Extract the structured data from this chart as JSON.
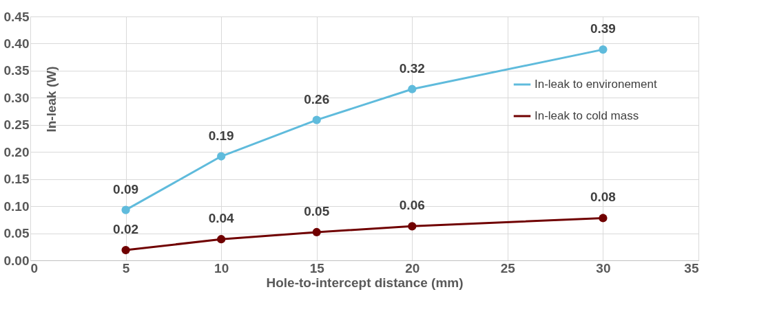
{
  "chart_data": {
    "type": "line",
    "xlabel": "Hole-to-intercept distance (mm)",
    "ylabel": "In-leak (W)",
    "xlim": [
      0,
      35
    ],
    "xticks": [
      0,
      5,
      10,
      15,
      20,
      25,
      30,
      35
    ],
    "ylim": [
      0,
      0.45
    ],
    "yticks": [
      {
        "value": 0,
        "label": "0.00"
      },
      {
        "value": 0.05,
        "label": "0.05"
      },
      {
        "value": 0.1,
        "label": "0.10"
      },
      {
        "value": 0.15,
        "label": "0.15"
      },
      {
        "value": 0.2,
        "label": "0.20"
      },
      {
        "value": 0.25,
        "label": "0.25"
      },
      {
        "value": 0.3,
        "label": "0.30"
      },
      {
        "value": 0.35,
        "label": "0.35"
      },
      {
        "value": 0.4,
        "label": "0.40"
      },
      {
        "value": 0.45,
        "label": "0.45"
      }
    ],
    "x": [
      5,
      10,
      15,
      20,
      30
    ],
    "series": [
      {
        "name": "In-leak to environement",
        "color": "#5fbbdc",
        "values": [
          0.093,
          0.192,
          0.259,
          0.316,
          0.389
        ],
        "value_labels": [
          "0.09",
          "0.19",
          "0.26",
          "0.32",
          "0.39"
        ]
      },
      {
        "name": "In-leak to cold mass",
        "color": "#700000",
        "values": [
          0.019,
          0.039,
          0.052,
          0.063,
          0.078
        ],
        "value_labels": [
          "0.02",
          "0.04",
          "0.05",
          "0.06",
          "0.08"
        ]
      }
    ],
    "grid": true,
    "legend": "top right",
    "marker": "circle",
    "line_style": "solid"
  }
}
